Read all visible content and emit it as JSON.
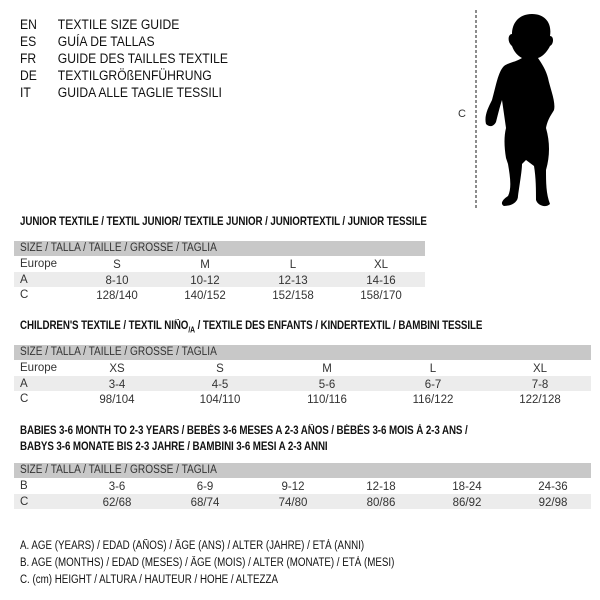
{
  "languages": [
    {
      "code": "EN",
      "text": "TEXTILE SIZE GUIDE"
    },
    {
      "code": "ES",
      "text": "GUÍA DE TALLAS"
    },
    {
      "code": "FR",
      "text": "GUIDE DES TAILLES TEXTILE"
    },
    {
      "code": "DE",
      "text": "TEXTILGRÖßENFÜHRUNG"
    },
    {
      "code": "IT",
      "text": "GUIDA ALLE TAGLIE TESSILI"
    }
  ],
  "figure": {
    "measure_label": "C",
    "icon": "child-silhouette"
  },
  "junior": {
    "title": "JUNIOR TEXTILE / TEXTIL JUNIOR/ TEXTILE JUNIOR / JUNIORTEXTIL / JUNIOR TESSILE",
    "header": "SIZE / TALLA / TAILLE / GRÖSSE / TAGLIA",
    "rows": [
      {
        "label": "Europe",
        "cells": [
          "S",
          "M",
          "L",
          "XL"
        ]
      },
      {
        "label": "A",
        "cells": [
          "8-10",
          "10-12",
          "12-13",
          "14-16"
        ]
      },
      {
        "label": "C",
        "cells": [
          "128/140",
          "140/152",
          "152/158",
          "158/170"
        ]
      }
    ]
  },
  "children": {
    "title": "CHILDREN'S TEXTILE / TEXTIL NIÑO",
    "title_sub": "/A",
    "title_rest": " / TEXTILE DES ENFANTS / KINDERTEXTIL / BAMBINI TESSILE",
    "header": "SIZE / TALLA / TAILLE / GRÖSSE / TAGLIA",
    "rows": [
      {
        "label": "Europe",
        "cells": [
          "XS",
          "S",
          "M",
          "L",
          "XL"
        ]
      },
      {
        "label": "A",
        "cells": [
          "3-4",
          "4-5",
          "5-6",
          "6-7",
          "7-8"
        ]
      },
      {
        "label": "C",
        "cells": [
          "98/104",
          "104/110",
          "110/116",
          "116/122",
          "122/128"
        ]
      }
    ]
  },
  "babies": {
    "title_line1": "BABIES 3-6 MONTH TO 2-3 YEARS / BEBÉS 3-6 MESES A 2-3 AÑOS / BÉBÉS 3-6 MOIS À 2-3 ANS /",
    "title_line2": "BABYS 3-6 MONATE BIS 2-3 JAHRE / BAMBINI 3-6 MESI A 2-3 ANNI",
    "header": "SIZE / TALLA / TAILLE / GRÖSSE / TAGLIA",
    "rows": [
      {
        "label": "B",
        "cells": [
          "3-6",
          "6-9",
          "9-12",
          "12-18",
          "18-24",
          "24-36"
        ]
      },
      {
        "label": "C",
        "cells": [
          "62/68",
          "68/74",
          "74/80",
          "80/86",
          "86/92",
          "92/98"
        ]
      }
    ]
  },
  "legend": [
    "A. AGE (YEARS) / EDAD (AÑOS) / ÂGE (ANS) / ALTER (JAHRE) / ETÀ (ANNI)",
    "B. AGE (MONTHS) / EDAD (MESES) / ÂGE (MOIS) / ALTER (MONATE) / ETÀ (MESI)",
    "C. (cm) HEIGHT / ALTURA / HAUTEUR / HÖHE / ALTEZZA"
  ],
  "colors": {
    "header_bg": "#c8c8c8",
    "row_shade": "#ececec",
    "text": "#111111"
  }
}
